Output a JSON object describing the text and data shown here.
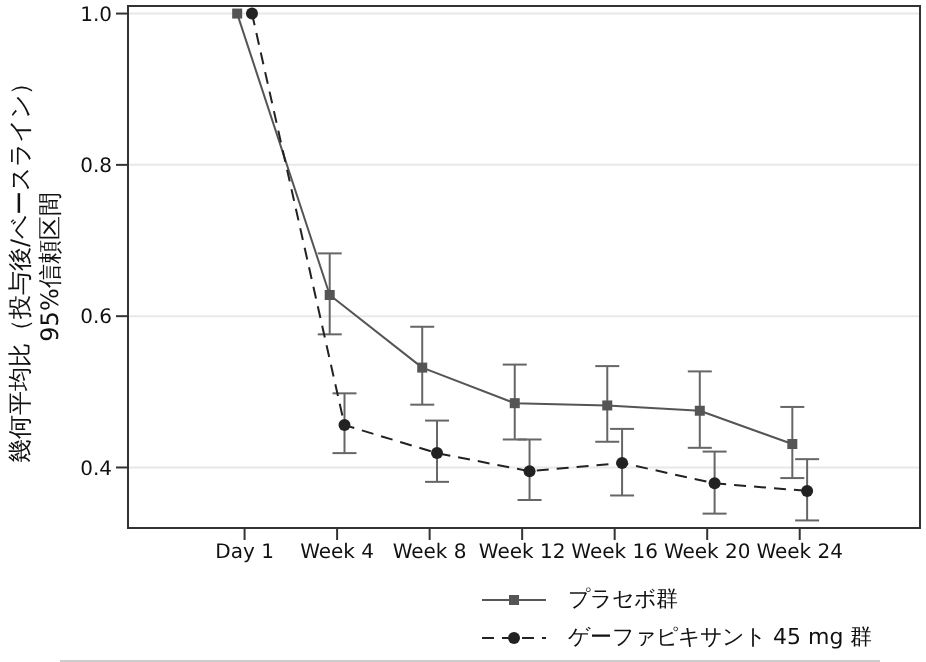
{
  "chart_data": {
    "type": "line",
    "ylabel": "幾何平均比（投与後/ベースライン）\n95%信頼区間",
    "categories": [
      "Day 1",
      "Week 4",
      "Week 8",
      "Week 12",
      "Week 16",
      "Week 20",
      "Week 24"
    ],
    "series": [
      {
        "name": "プラセボ群",
        "color": "#555555",
        "marker": "square",
        "line_style": "solid",
        "values": [
          1.0,
          0.628,
          0.532,
          0.485,
          0.482,
          0.475,
          0.431
        ],
        "errors": [
          null,
          [
            0.576,
            0.683
          ],
          [
            0.483,
            0.586
          ],
          [
            0.437,
            0.536
          ],
          [
            0.434,
            0.534
          ],
          [
            0.426,
            0.527
          ],
          [
            0.386,
            0.48
          ]
        ]
      },
      {
        "name": "ゲーファピキサント 45 mg 群",
        "color": "#222222",
        "marker": "circle",
        "line_style": "dashed",
        "values": [
          1.0,
          0.456,
          0.419,
          0.395,
          0.406,
          0.379,
          0.369
        ],
        "errors": [
          null,
          [
            0.419,
            0.498
          ],
          [
            0.381,
            0.462
          ],
          [
            0.357,
            0.437
          ],
          [
            0.363,
            0.451
          ],
          [
            0.339,
            0.421
          ],
          [
            0.33,
            0.411
          ]
        ]
      }
    ],
    "ylim": [
      0.32,
      1.01
    ],
    "yticks": [
      {
        "value": 0.4,
        "label": "0.4"
      },
      {
        "value": 0.6,
        "label": "0.6"
      },
      {
        "value": 0.8,
        "label": "0.8"
      },
      {
        "value": 1.0,
        "label": "1.0"
      }
    ],
    "grid": "y",
    "legend": "bottom"
  }
}
